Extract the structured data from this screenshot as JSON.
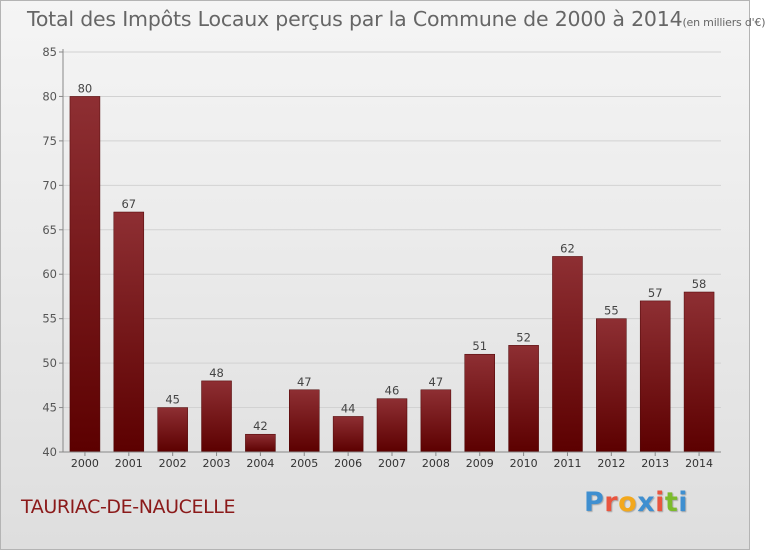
{
  "header": {
    "title": "Total des Impôts Locaux perçus par la Commune de 2000 à 2014",
    "unit": "(en milliers d'€)"
  },
  "footer": {
    "commune": "TAURIAC-DE-NAUCELLE",
    "brand": [
      "P",
      "r",
      "o",
      "x",
      "i",
      "t",
      "i"
    ],
    "brand_colors": [
      "#3f8fd0",
      "#e9553f",
      "#f3a81c",
      "#3f8fd0",
      "#e9553f",
      "#7cbb2c",
      "#3f8fd0"
    ]
  },
  "colors": {
    "bar_top": "#8e2f33",
    "bar_bottom": "#5c0000",
    "grid": "#d2d2d2"
  },
  "chart_data": {
    "type": "bar",
    "title": "Total des Impôts Locaux perçus par la Commune de 2000 à 2014 (en milliers d'€)",
    "xlabel": "",
    "ylabel": "",
    "categories": [
      "2000",
      "2001",
      "2002",
      "2003",
      "2004",
      "2005",
      "2006",
      "2007",
      "2008",
      "2009",
      "2010",
      "2011",
      "2012",
      "2013",
      "2014"
    ],
    "values": [
      80,
      67,
      45,
      48,
      42,
      47,
      44,
      46,
      47,
      51,
      52,
      62,
      55,
      57,
      58
    ],
    "ylim": [
      40,
      85
    ],
    "yticks": [
      40,
      45,
      50,
      55,
      60,
      65,
      70,
      75,
      80,
      85
    ],
    "grid": true
  }
}
